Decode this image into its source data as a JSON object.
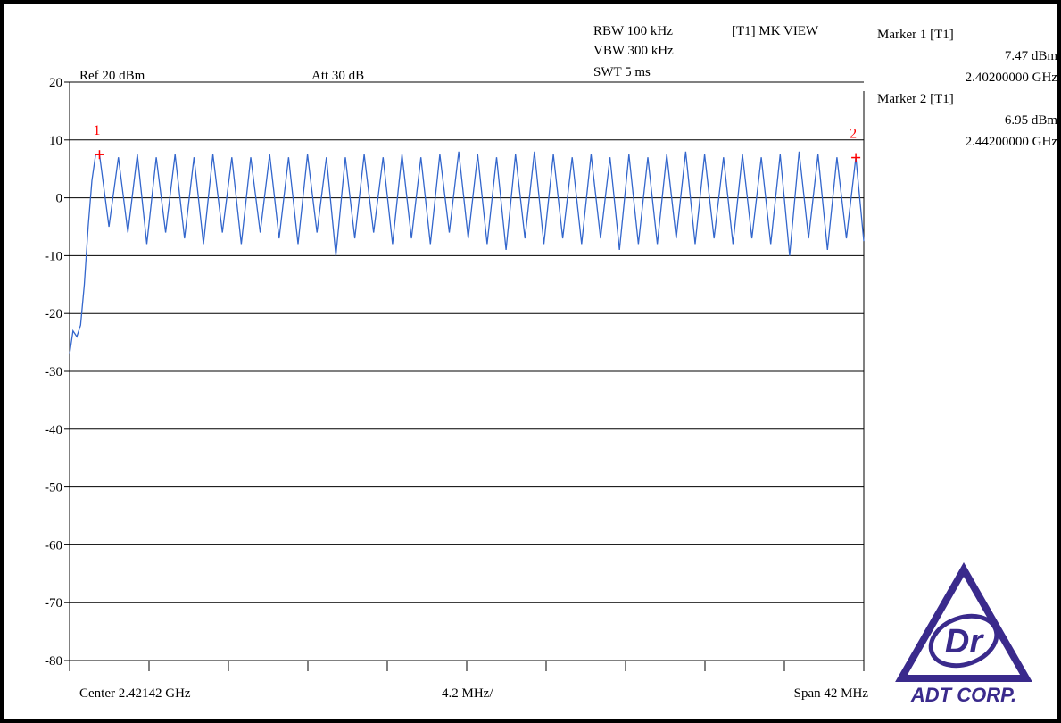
{
  "header": {
    "ref_level": "Ref 20 dBm",
    "attenuation": "Att  30 dB",
    "rbw": "RBW 100 kHz",
    "vbw": "VBW 300 kHz",
    "swt": "SWT 5 ms",
    "mode": "[T1] MK VIEW"
  },
  "markers": [
    {
      "title": "Marker 1 [T1]",
      "level": "7.47 dBm",
      "freq": "2.40200000 GHz",
      "id": "1"
    },
    {
      "title": "Marker 2 [T1]",
      "level": "6.95 dBm",
      "freq": "2.44200000 GHz",
      "id": "2"
    }
  ],
  "footer": {
    "center": "Center 2.42142 GHz",
    "div": "4.2 MHz/",
    "span": "Span 42 MHz"
  },
  "logo": {
    "text": "ADT CORP.",
    "mark": "Dr"
  },
  "colors": {
    "trace": "#3366cc",
    "marker": "#ff0000",
    "grid": "#000000",
    "logo": "#3a2a8c"
  },
  "chart_data": {
    "type": "line",
    "ylim": [
      -80,
      20
    ],
    "yticks": [
      "20",
      "10",
      "0",
      "-10",
      "-20",
      "-30",
      "-40",
      "-50",
      "-60",
      "-70",
      "-80"
    ],
    "xlim_mhz": [
      2400.42,
      2442.42
    ],
    "x_divisions": 10,
    "grid": true,
    "series": [
      {
        "x_mhz": [
          2400.42,
          2400.6,
          2400.8,
          2401.0,
          2401.2,
          2401.4,
          2401.6,
          2401.8,
          2402.0,
          2402.5,
          2403.0,
          2403.5,
          2404.0,
          2404.5,
          2405.0,
          2405.5,
          2406.0,
          2406.5,
          2407.0,
          2407.5,
          2408.0,
          2408.5,
          2409.0,
          2409.5,
          2410.0,
          2410.5,
          2411.0,
          2411.5,
          2412.0,
          2412.5,
          2413.0,
          2413.5,
          2414.0,
          2414.5,
          2415.0,
          2415.5,
          2416.0,
          2416.5,
          2417.0,
          2417.5,
          2418.0,
          2418.5,
          2419.0,
          2419.5,
          2420.0,
          2420.5,
          2421.0,
          2421.5,
          2422.0,
          2422.5,
          2423.0,
          2423.5,
          2424.0,
          2424.5,
          2425.0,
          2425.5,
          2426.0,
          2426.5,
          2427.0,
          2427.5,
          2428.0,
          2428.5,
          2429.0,
          2429.5,
          2430.0,
          2430.5,
          2431.0,
          2431.5,
          2432.0,
          2432.5,
          2433.0,
          2433.5,
          2434.0,
          2434.5,
          2435.0,
          2435.5,
          2436.0,
          2436.5,
          2437.0,
          2437.5,
          2438.0,
          2438.5,
          2439.0,
          2439.5,
          2440.0,
          2440.5,
          2441.0,
          2441.5,
          2442.0,
          2442.42
        ],
        "y_dbm": [
          -27,
          -23,
          -24,
          -22,
          -15,
          -5,
          3,
          7.5,
          7.5,
          -5,
          7,
          -6,
          7.5,
          -8,
          7,
          -6,
          7.5,
          -7,
          7,
          -8,
          7.5,
          -6,
          7,
          -8,
          7,
          -6,
          7.5,
          -7,
          7,
          -8,
          7.5,
          -6,
          7,
          -10,
          7,
          -7,
          7.5,
          -6,
          7,
          -8,
          7.5,
          -7,
          7,
          -8,
          7.5,
          -6,
          8,
          -7,
          7.5,
          -8,
          7,
          -9,
          7.5,
          -7,
          8,
          -8,
          7.5,
          -7,
          7,
          -8,
          7.5,
          -7,
          7,
          -9,
          7.5,
          -8,
          7,
          -8,
          7.5,
          -7,
          8,
          -8,
          7.5,
          -7,
          7,
          -8,
          7.5,
          -7,
          7,
          -8,
          7.5,
          -10,
          8,
          -7,
          7.5,
          -9,
          7,
          -7,
          7,
          -7.5
        ]
      }
    ],
    "marker_points": [
      {
        "label": "1",
        "x_mhz": 2402.0,
        "y_dbm": 7.47
      },
      {
        "label": "2",
        "x_mhz": 2442.0,
        "y_dbm": 6.95
      }
    ]
  }
}
